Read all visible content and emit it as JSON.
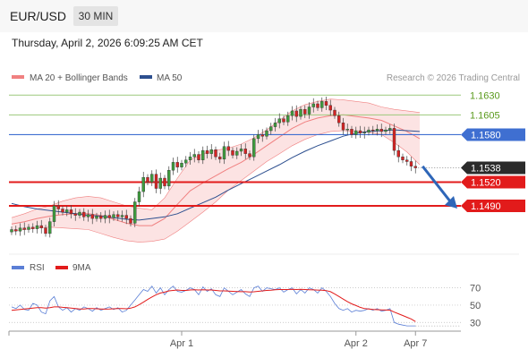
{
  "header": {
    "symbol": "EUR/USD",
    "timeframe": "30 MIN",
    "datetime": "Thursday, April 2, 2026 6:09:25 AM CET"
  },
  "colors": {
    "bollinger": "#f08080",
    "bollinger_band": "#fbdcdc",
    "ma50": "#2d4f8f",
    "support": "#e21b1b",
    "resistance": "#3f6fd1",
    "target_line": "#9cc97c",
    "target_text": "#5a9a1c",
    "arrow": "#2e66b8",
    "candle_up": "#3e9b3e",
    "candle_down": "#d42424",
    "rsi": "#5b7fd6",
    "rsi_ma": "#e21b1b"
  },
  "legend": {
    "bollinger_label": "MA 20 + Bollinger Bands",
    "ma50_label": "MA 50",
    "source": "Research © 2026 Trading Central"
  },
  "rsi_legend": {
    "rsi_label": "RSI",
    "ma_label": "9MA"
  },
  "chart_data": [
    {
      "type": "candlestick",
      "title": "EUR/USD",
      "ylim": [
        1.143,
        1.1645
      ],
      "levels": [
        {
          "value": 1.163,
          "label": "1.1630",
          "kind": "target"
        },
        {
          "value": 1.1605,
          "label": "1.1605",
          "kind": "target"
        },
        {
          "value": 1.158,
          "label": "1.1580",
          "kind": "resistance"
        },
        {
          "value": 1.1538,
          "label": "1.1538",
          "kind": "last_price"
        },
        {
          "value": 1.152,
          "label": "1.1520",
          "kind": "support"
        },
        {
          "value": 1.149,
          "label": "1.1490",
          "kind": "support"
        }
      ],
      "xticks": [
        {
          "index": 40,
          "label": "Apr 1"
        },
        {
          "index": 81,
          "label": "Apr 2"
        },
        {
          "index": 95,
          "label": "Apr 7"
        }
      ],
      "closes": [
        1.146,
        1.1458,
        1.1462,
        1.146,
        1.1463,
        1.1461,
        1.1465,
        1.1462,
        1.1455,
        1.147,
        1.149,
        1.1486,
        1.1482,
        1.1485,
        1.148,
        1.1478,
        1.1482,
        1.1476,
        1.1479,
        1.1474,
        1.1477,
        1.1474,
        1.1478,
        1.1475,
        1.1479,
        1.1476,
        1.1478,
        1.1474,
        1.1468,
        1.1495,
        1.1508,
        1.1526,
        1.152,
        1.153,
        1.1512,
        1.1525,
        1.1515,
        1.1535,
        1.1545,
        1.1539,
        1.1544,
        1.1548,
        1.1552,
        1.1555,
        1.1548,
        1.156,
        1.1556,
        1.1561,
        1.1552,
        1.1549,
        1.1565,
        1.156,
        1.1554,
        1.1559,
        1.1562,
        1.1556,
        1.1552,
        1.1575,
        1.158,
        1.1578,
        1.1585,
        1.159,
        1.1595,
        1.16,
        1.1596,
        1.1604,
        1.161,
        1.1603,
        1.1612,
        1.1606,
        1.1615,
        1.1619,
        1.1614,
        1.1622,
        1.1617,
        1.1611,
        1.1604,
        1.1595,
        1.1586,
        1.1587,
        1.158,
        1.1585,
        1.1582,
        1.1583,
        1.1586,
        1.1585,
        1.1587,
        1.1584,
        1.1586,
        1.1588,
        1.156,
        1.1552,
        1.1548,
        1.1546,
        1.154,
        1.1538
      ],
      "opens_hint": "open equals previous close",
      "bb_upper": [
        1.1475,
        1.148,
        1.1486,
        1.149,
        1.1496,
        1.15,
        1.1502,
        1.15,
        1.1495,
        1.149,
        1.1487,
        1.1485,
        1.15,
        1.1525,
        1.1548,
        1.1556,
        1.156,
        1.1563,
        1.1568,
        1.1576,
        1.1586,
        1.1598,
        1.161,
        1.1618,
        1.1622,
        1.1625,
        1.1624,
        1.1622,
        1.162,
        1.1615,
        1.1612,
        1.161,
        1.1608
      ],
      "bb_lower": [
        1.1458,
        1.146,
        1.1462,
        1.1463,
        1.1462,
        1.1461,
        1.146,
        1.1455,
        1.145,
        1.1446,
        1.1444,
        1.1445,
        1.1448,
        1.1458,
        1.147,
        1.1482,
        1.1495,
        1.151,
        1.1522,
        1.1534,
        1.1546,
        1.1556,
        1.1566,
        1.1574,
        1.158,
        1.1584,
        1.1585,
        1.1584,
        1.1583,
        1.158,
        1.157,
        1.1558,
        1.1542
      ],
      "ma20": [
        1.1467,
        1.147,
        1.1474,
        1.1477,
        1.1479,
        1.148,
        1.148,
        1.1478,
        1.1473,
        1.1468,
        1.1465,
        1.1465,
        1.1474,
        1.1492,
        1.1509,
        1.1519,
        1.1528,
        1.1537,
        1.1545,
        1.1555,
        1.1566,
        1.1577,
        1.1588,
        1.1596,
        1.1601,
        1.1604,
        1.1605,
        1.1603,
        1.1601,
        1.1598,
        1.1591,
        1.1584,
        1.1575
      ],
      "ma50": [
        1.1493,
        1.1489,
        1.1486,
        1.1484,
        1.1482,
        1.148,
        1.1478,
        1.1477,
        1.1475,
        1.1473,
        1.1472,
        1.1474,
        1.1476,
        1.148,
        1.1487,
        1.1494,
        1.1501,
        1.151,
        1.1518,
        1.1526,
        1.1534,
        1.1542,
        1.1551,
        1.1559,
        1.1566,
        1.1572,
        1.1578,
        1.1582,
        1.1584,
        1.1585,
        1.1586,
        1.1585,
        1.1584
      ],
      "forecast_arrow": {
        "from": 1.154,
        "to": 1.149
      }
    },
    {
      "type": "line",
      "title": "RSI",
      "ylim": [
        22,
        82
      ],
      "yticks": [
        30,
        50,
        70
      ],
      "series": [
        {
          "name": "RSI",
          "values": [
            48,
            46,
            50,
            45,
            44,
            52,
            50,
            42,
            40,
            55,
            60,
            48,
            44,
            47,
            42,
            46,
            44,
            48,
            46,
            43,
            47,
            44,
            46,
            48,
            45,
            47,
            42,
            44,
            50,
            56,
            62,
            68,
            66,
            72,
            64,
            70,
            62,
            68,
            72,
            66,
            65,
            67,
            70,
            68,
            62,
            71,
            66,
            69,
            62,
            60,
            70,
            66,
            62,
            65,
            68,
            63,
            60,
            70,
            72,
            66,
            70,
            69,
            68,
            70,
            65,
            68,
            70,
            63,
            68,
            64,
            70,
            68,
            64,
            70,
            66,
            60,
            52,
            46,
            44,
            46,
            42,
            44,
            43,
            44,
            46,
            44,
            46,
            43,
            44,
            46,
            30,
            28,
            27,
            26,
            26,
            26
          ]
        },
        {
          "name": "9MA",
          "values": [
            44,
            44.5,
            45,
            45.5,
            46,
            46.5,
            47,
            47,
            46.5,
            47,
            48,
            48,
            47.5,
            47,
            46.5,
            46,
            45.5,
            45.5,
            46,
            46,
            45.8,
            45.6,
            45.4,
            45.5,
            45.8,
            46,
            46,
            45.8,
            46.5,
            48,
            50.5,
            53.5,
            56.5,
            59.5,
            62,
            64,
            65,
            66.5,
            67,
            67.5,
            67,
            67,
            67.5,
            67.8,
            67.5,
            67.8,
            67.5,
            67.5,
            67,
            66.5,
            66.5,
            66.3,
            66,
            65.8,
            65.6,
            65.5,
            65.2,
            65.4,
            66,
            66.5,
            67,
            67.3,
            67.7,
            68,
            68,
            68,
            68.2,
            68,
            68.2,
            68,
            67.8,
            67.6,
            67.4,
            67.2,
            66.8,
            65.5,
            63,
            60,
            57,
            54,
            51.5,
            49.5,
            47.5,
            46,
            45.5,
            45,
            44.8,
            44.6,
            44.3,
            44.2,
            42,
            40,
            38,
            36,
            34,
            31
          ]
        }
      ]
    }
  ]
}
